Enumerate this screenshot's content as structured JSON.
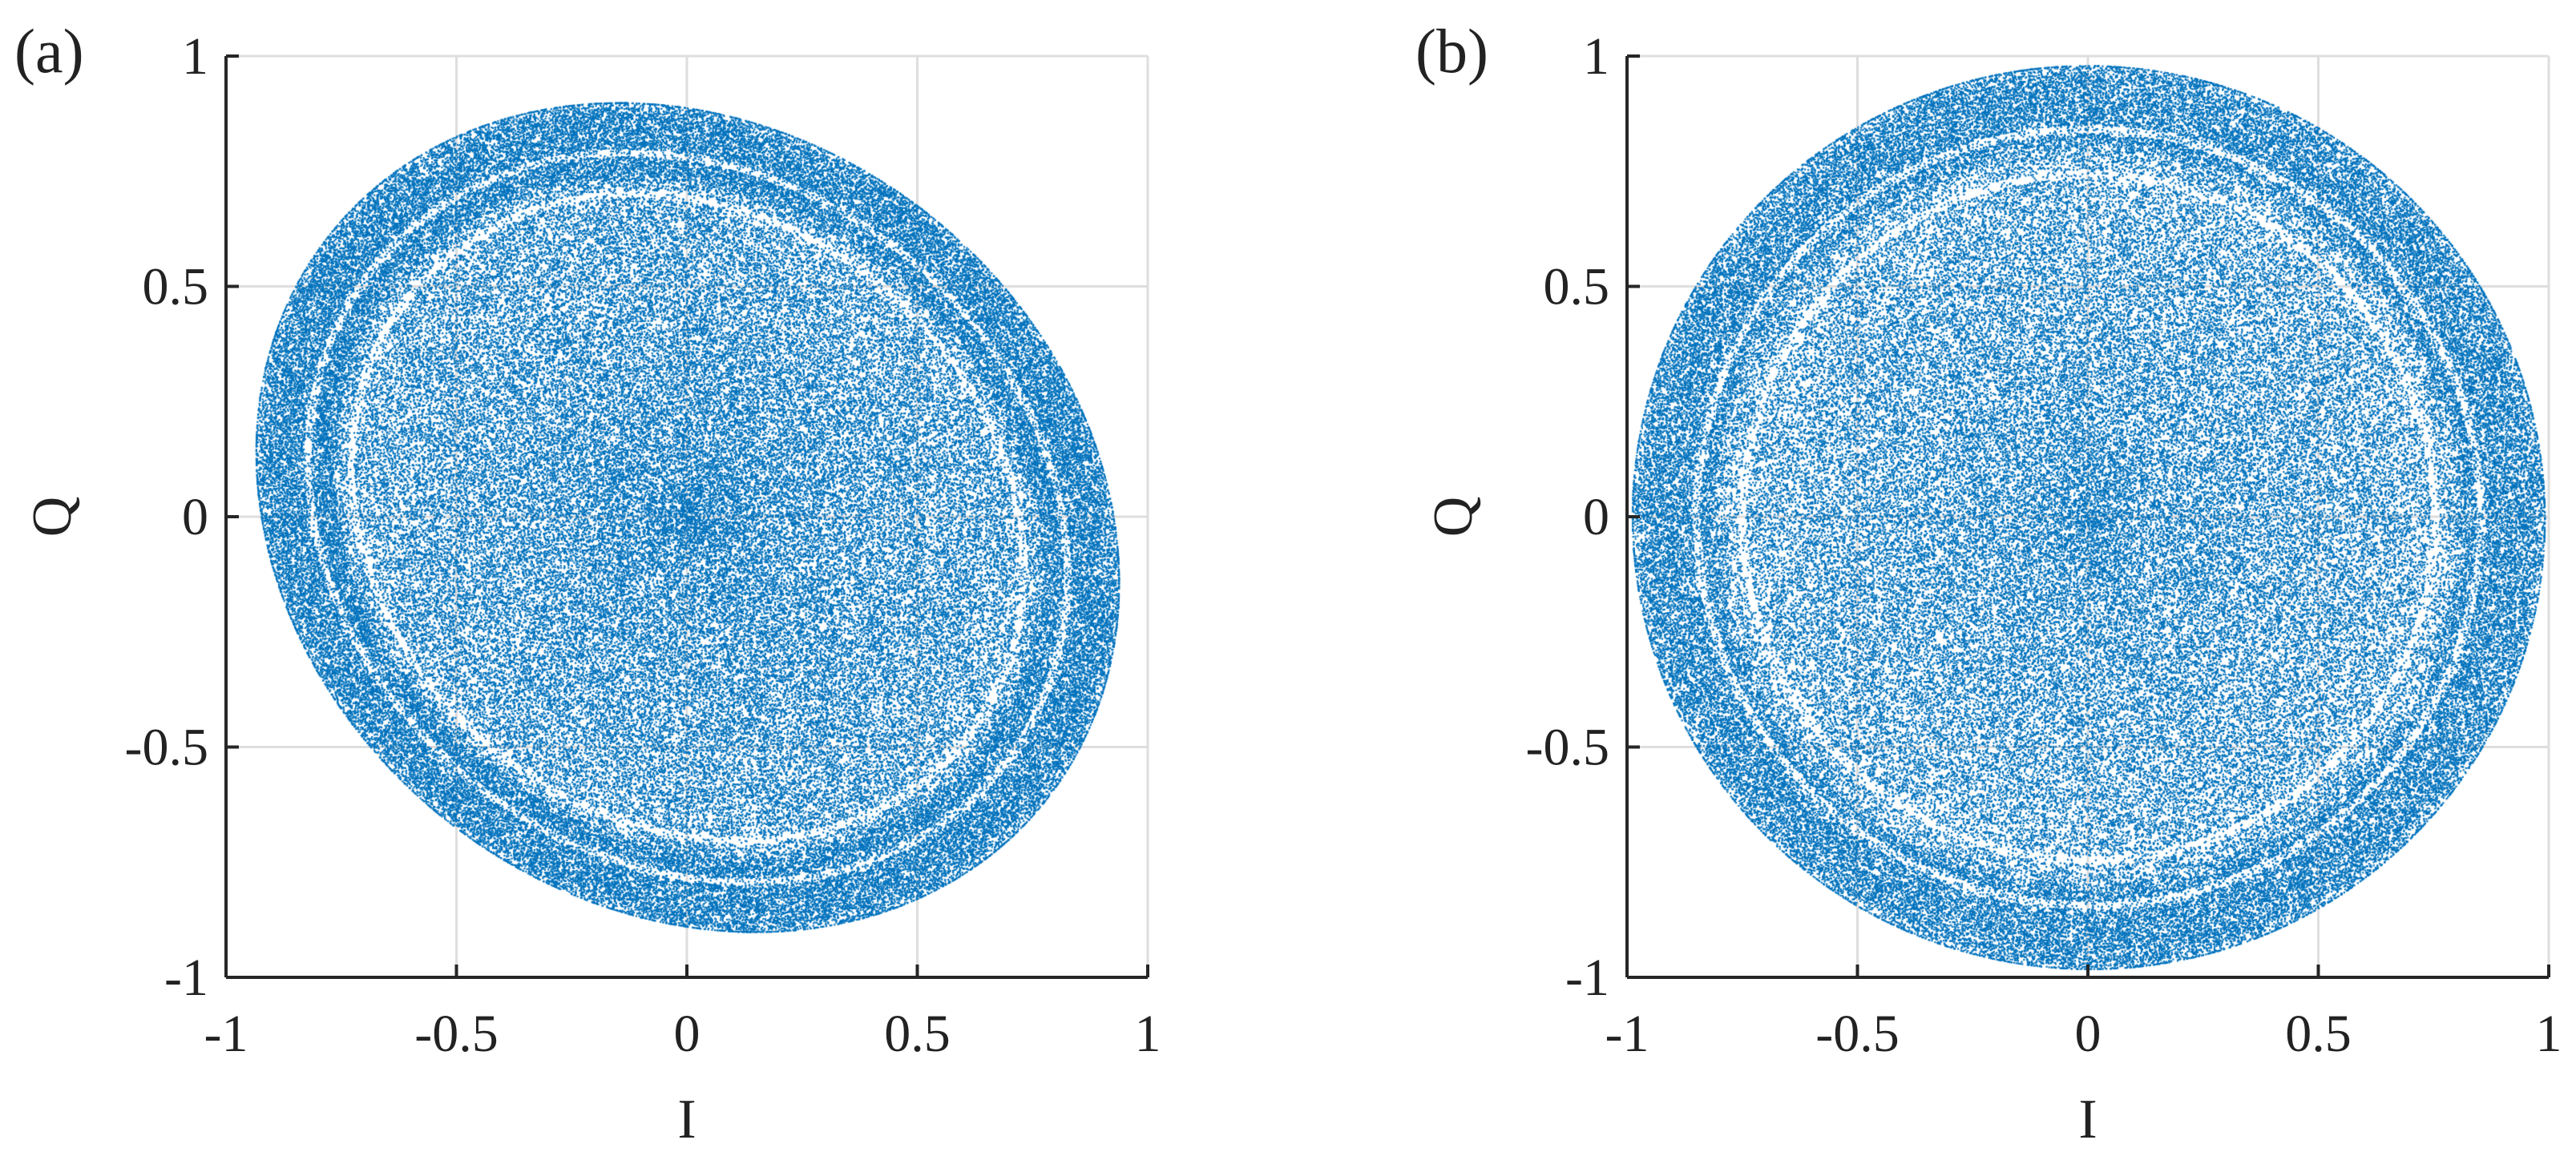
{
  "colors": {
    "points": "#0072BD",
    "axis": "#262626",
    "grid": "#dedede",
    "text": "#222222"
  },
  "chart_data": [
    {
      "type": "scatter",
      "panel_label": "(a)",
      "xlabel": "I",
      "ylabel": "Q",
      "xlim": [
        -1,
        1
      ],
      "ylim": [
        -1,
        1
      ],
      "xticks": [
        -1,
        -0.5,
        0,
        0.5,
        1
      ],
      "yticks": [
        -1,
        -0.5,
        0,
        0.5,
        1
      ],
      "xtick_labels": [
        "-1",
        "-0.5",
        "0",
        "0.5",
        "1"
      ],
      "ytick_labels": [
        "-1",
        "-0.5",
        "0",
        "0.5",
        "1"
      ],
      "grid": true,
      "series": [
        {
          "color": "#0072BD",
          "description": "dense cloud of points filling an ellipse tilted clockwise, rings of lower density near the edge",
          "center": [
            0.0,
            0.0
          ],
          "semi_axes": [
            0.99,
            0.84
          ],
          "tilt_deg": -38,
          "rings_r": [
            0.78,
            0.88
          ],
          "x_extent": [
            -0.99,
            0.99
          ],
          "y_extent": [
            -1.0,
            1.0
          ]
        }
      ]
    },
    {
      "type": "scatter",
      "panel_label": "(b)",
      "xlabel": "I",
      "ylabel": "Q",
      "xlim": [
        -1,
        1
      ],
      "ylim": [
        -1,
        1
      ],
      "xticks": [
        -1,
        -0.5,
        0,
        0.5,
        1
      ],
      "yticks": [
        -1,
        -0.5,
        0,
        0.5,
        1
      ],
      "xtick_labels": [
        "-1",
        "-0.5",
        "0",
        "0.5",
        "1"
      ],
      "ytick_labels": [
        "-1",
        "-0.5",
        "0",
        "0.5",
        "1"
      ],
      "grid": true,
      "series": [
        {
          "color": "#0072BD",
          "description": "dense cloud of points filling a nearly circular disk, rings of lower density near the edge",
          "center": [
            0.0,
            0.0
          ],
          "semi_axes": [
            0.99,
            0.98
          ],
          "tilt_deg": -10,
          "rings_r": [
            0.76,
            0.86
          ],
          "x_extent": [
            -1.0,
            1.0
          ],
          "y_extent": [
            -0.99,
            0.99
          ]
        }
      ]
    }
  ]
}
